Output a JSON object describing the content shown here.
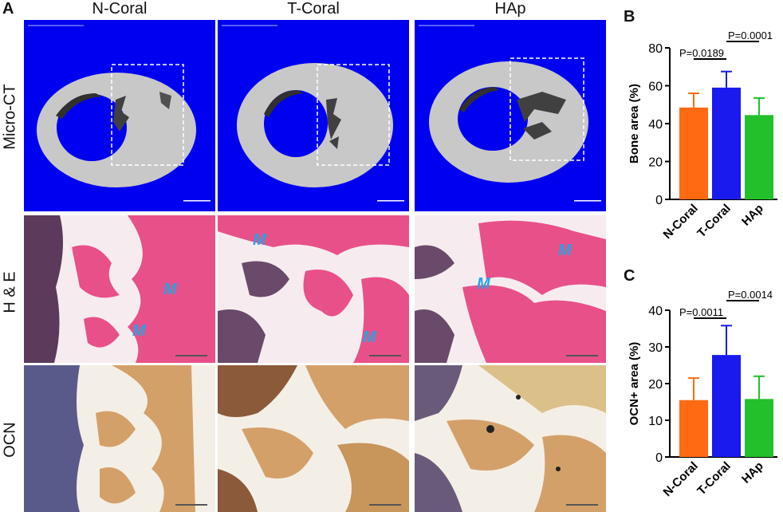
{
  "panels": {
    "a": "A",
    "b": "B",
    "c": "C"
  },
  "columns": [
    "N-Coral",
    "T-Coral",
    "HAp"
  ],
  "rows": [
    "Micro-CT",
    "H & E",
    "OCN"
  ],
  "he_marker": "M",
  "colors": {
    "ct_background": "#0000f0",
    "bone_gray": "#c8c8c8",
    "he_pink": "#e8508a",
    "ocn_tan": "#d4a06a",
    "bar_ncoral": "#ff6a13",
    "bar_tcoral": "#1a1aee",
    "bar_hap": "#22c02a",
    "marker": "#29a3e0"
  },
  "chart_data": [
    {
      "type": "bar",
      "panel": "B",
      "categories": [
        "N-Coral",
        "T-Coral",
        "HAp"
      ],
      "values": [
        48.5,
        59,
        44.5
      ],
      "errors": [
        7.5,
        8.5,
        9
      ],
      "ylabel": "Bone area (%)",
      "ylim": [
        0,
        80
      ],
      "yticks": [
        0,
        20,
        40,
        60,
        80
      ],
      "annotations": [
        {
          "text": "P=0.0189",
          "between": [
            0,
            1
          ]
        },
        {
          "text": "P=0.0001",
          "between": [
            1,
            2
          ]
        }
      ]
    },
    {
      "type": "bar",
      "panel": "C",
      "categories": [
        "N-Coral",
        "T-Coral",
        "HAp"
      ],
      "values": [
        15.5,
        27.8,
        15.8
      ],
      "errors": [
        6,
        8,
        6.2
      ],
      "ylabel": "OCN+ area (%)",
      "ylim": [
        0,
        40
      ],
      "yticks": [
        0,
        10,
        20,
        30,
        40
      ],
      "annotations": [
        {
          "text": "P=0.0011",
          "between": [
            0,
            1
          ]
        },
        {
          "text": "P=0.0014",
          "between": [
            1,
            2
          ]
        }
      ]
    }
  ]
}
